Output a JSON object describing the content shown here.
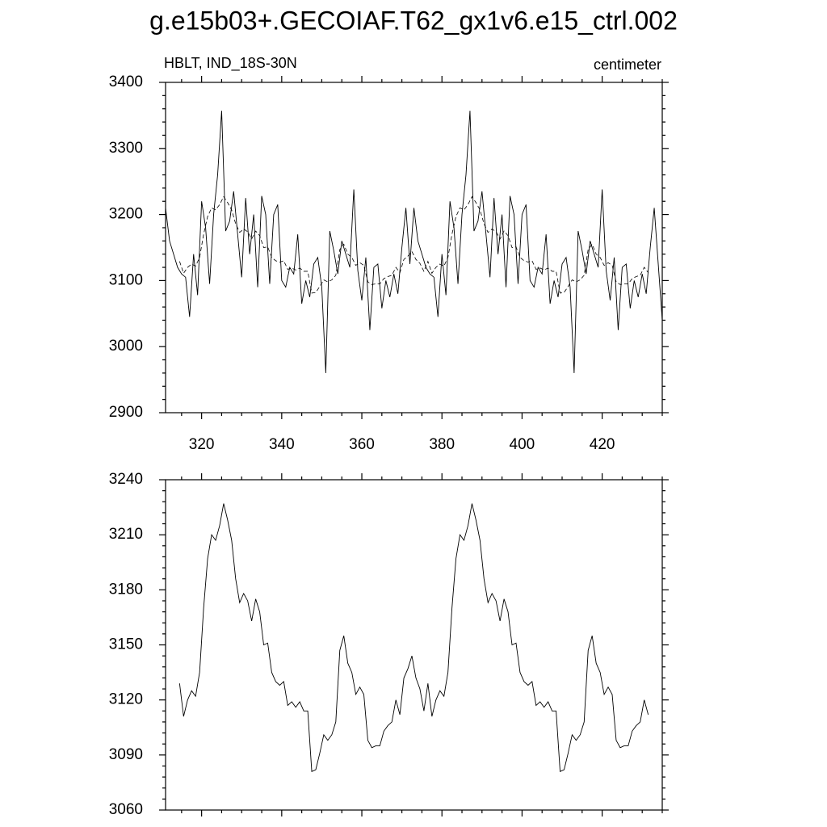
{
  "title": "g.e15b03+.GECOIAF.T62_gx1v6.e15_ctrl.002",
  "chart_data": [
    {
      "type": "line",
      "left_label": "HBLT, IND_18S-30N",
      "right_label": "centimeter",
      "xlim": [
        311,
        435
      ],
      "xticks": [
        320,
        340,
        360,
        380,
        400,
        420
      ],
      "ylim": [
        2900,
        3400
      ],
      "yticks": [
        2900,
        3000,
        3100,
        3200,
        3300,
        3400
      ],
      "x": [
        311,
        312,
        313,
        314,
        315,
        316,
        317,
        318,
        319,
        320,
        321,
        322,
        323,
        324,
        325,
        326,
        327,
        328,
        329,
        330,
        331,
        332,
        333,
        334,
        335,
        336,
        337,
        338,
        339,
        340,
        341,
        342,
        343,
        344,
        345,
        346,
        347,
        348,
        349,
        350,
        351,
        352,
        353,
        354,
        355,
        356,
        357,
        358,
        359,
        360,
        361,
        362,
        363,
        364,
        365,
        366,
        367,
        368,
        369,
        370,
        371,
        372,
        373,
        374,
        375,
        376,
        377,
        378,
        379,
        380,
        381,
        382,
        383,
        384,
        385,
        386,
        387,
        388,
        389,
        390,
        391,
        392,
        393,
        394,
        395,
        396,
        397,
        398,
        399,
        400,
        401,
        402,
        403,
        404,
        405,
        406,
        407,
        408,
        409,
        410,
        411,
        412,
        413,
        414,
        415,
        416,
        417,
        418,
        419,
        420,
        421,
        422,
        423,
        424,
        425,
        426,
        427,
        428,
        429,
        430,
        431,
        432,
        433,
        434,
        435
      ],
      "series": [
        {
          "color": "#000000",
          "values": [
            3210,
            3160,
            3140,
            3120,
            3110,
            3105,
            3045,
            3140,
            3078,
            3220,
            3180,
            3095,
            3200,
            3260,
            3357,
            3175,
            3190,
            3235,
            3170,
            3105,
            3225,
            3140,
            3200,
            3090,
            3228,
            3200,
            3095,
            3200,
            3215,
            3100,
            3090,
            3120,
            3110,
            3170,
            3065,
            3100,
            3075,
            3125,
            3135,
            3090,
            2960,
            3175,
            3145,
            3110,
            3160,
            3140,
            3120,
            3238,
            3115,
            3070,
            3135,
            3025,
            3120,
            3125,
            3058,
            3100,
            3075,
            3110,
            3080,
            3150,
            3210,
            3125,
            3210,
            3160,
            3140,
            3120,
            3110,
            3105,
            3045,
            3140,
            3078,
            3220,
            3180,
            3095,
            3200,
            3260,
            3357,
            3175,
            3190,
            3235,
            3170,
            3105,
            3225,
            3140,
            3200,
            3090,
            3228,
            3200,
            3095,
            3200,
            3215,
            3100,
            3090,
            3120,
            3110,
            3170,
            3065,
            3100,
            3075,
            3125,
            3135,
            3090,
            2960,
            3175,
            3145,
            3110,
            3160,
            3140,
            3120,
            3238,
            3115,
            3070,
            3135,
            3025,
            3120,
            3125,
            3058,
            3100,
            3075,
            3110,
            3080,
            3150,
            3210,
            3125,
            3040
          ]
        }
      ]
    },
    {
      "type": "line",
      "xlim": [
        311,
        435
      ],
      "ylim": [
        3060,
        3240
      ],
      "yticks": [
        3060,
        3090,
        3120,
        3150,
        3180,
        3210,
        3240
      ],
      "x": [
        314.5,
        315.5,
        316.5,
        317.5,
        318.5,
        319.5,
        320.5,
        321.5,
        322.5,
        323.5,
        324.5,
        325.5,
        326.5,
        327.5,
        328.5,
        329.5,
        330.5,
        331.5,
        332.5,
        333.5,
        334.5,
        335.5,
        336.5,
        337.5,
        338.5,
        339.5,
        340.5,
        341.5,
        342.5,
        343.5,
        344.5,
        345.5,
        346.5,
        347.5,
        348.5,
        349.5,
        350.5,
        351.5,
        352.5,
        353.5,
        354.5,
        355.5,
        356.5,
        357.5,
        358.5,
        359.5,
        360.5,
        361.5,
        362.5,
        363.5,
        364.5,
        365.5,
        366.5,
        367.5,
        368.5,
        369.5,
        370.5,
        371.5,
        372.5,
        373.5,
        374.5,
        375.5,
        376.5,
        377.5,
        378.5,
        379.5,
        380.5,
        381.5,
        382.5,
        383.5,
        384.5,
        385.5,
        386.5,
        387.5,
        388.5,
        389.5,
        390.5,
        391.5,
        392.5,
        393.5,
        394.5,
        395.5,
        396.5,
        397.5,
        398.5,
        399.5,
        400.5,
        401.5,
        402.5,
        403.5,
        404.5,
        405.5,
        406.5,
        407.5,
        408.5,
        409.5,
        410.5,
        411.5,
        412.5,
        413.5,
        414.5,
        415.5,
        416.5,
        417.5,
        418.5,
        419.5,
        420.5,
        421.5,
        422.5,
        423.5,
        424.5,
        425.5,
        426.5,
        427.5,
        428.5,
        429.5,
        430.5,
        431.5
      ],
      "series": [
        {
          "color": "#000000",
          "values": [
            3129,
            3111,
            3120,
            3125,
            3122,
            3135,
            3170,
            3197,
            3210,
            3207,
            3215,
            3227,
            3218,
            3207,
            3186,
            3173,
            3178,
            3174,
            3163,
            3175,
            3168,
            3150,
            3151,
            3135,
            3130,
            3128,
            3130,
            3117,
            3119,
            3116,
            3119,
            3114,
            3114,
            3081,
            3082,
            3091,
            3101,
            3098,
            3101,
            3108,
            3147,
            3155,
            3140,
            3135,
            3123,
            3127,
            3123,
            3098,
            3094,
            3095,
            3095,
            3103,
            3106,
            3108,
            3120,
            3112,
            3132,
            3137,
            3144,
            3132,
            3126,
            3114,
            3129,
            3111,
            3120,
            3125,
            3122,
            3135,
            3170,
            3197,
            3210,
            3207,
            3215,
            3227,
            3218,
            3207,
            3186,
            3173,
            3178,
            3174,
            3163,
            3175,
            3168,
            3150,
            3151,
            3135,
            3130,
            3128,
            3130,
            3117,
            3119,
            3116,
            3119,
            3114,
            3114,
            3081,
            3082,
            3091,
            3101,
            3098,
            3101,
            3108,
            3147,
            3155,
            3140,
            3135,
            3123,
            3127,
            3123,
            3098,
            3094,
            3095,
            3095,
            3103,
            3106,
            3108,
            3120,
            3112
          ]
        }
      ]
    }
  ]
}
